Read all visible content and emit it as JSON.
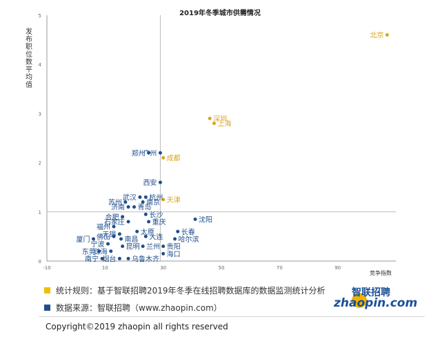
{
  "chart_data": {
    "type": "scatter",
    "title": "2019年冬季城市供需情况",
    "xlabel": "竞争指数",
    "ylabel": "发布职位数平均值",
    "xlim": [
      -10,
      110
    ],
    "ylim": [
      0,
      5
    ],
    "xticks": [
      "-10",
      "10",
      "30",
      "50",
      "70",
      "90"
    ],
    "yticks": [
      "0",
      "1",
      "2",
      "3",
      "4",
      "5"
    ],
    "reference_lines": {
      "x": 29,
      "y": 1
    },
    "grid": false,
    "colors": {
      "highlight": "#d9a520",
      "normal": "#1f4e8c",
      "axis": "#999999",
      "ref": "#bbbbbb"
    },
    "points": [
      {
        "city": "北京",
        "x": 107,
        "y": 4.6,
        "group": "highlight"
      },
      {
        "city": "深圳",
        "x": 46,
        "y": 2.9,
        "group": "highlight"
      },
      {
        "city": "上海",
        "x": 47.5,
        "y": 2.8,
        "group": "highlight"
      },
      {
        "city": "成都",
        "x": 30,
        "y": 2.1,
        "group": "highlight"
      },
      {
        "city": "天津",
        "x": 30,
        "y": 1.25,
        "group": "highlight"
      },
      {
        "city": "广州",
        "x": 29,
        "y": 2.2,
        "group": "normal"
      },
      {
        "city": "郑州",
        "x": 25,
        "y": 2.2,
        "group": "normal"
      },
      {
        "city": "西安",
        "x": 29,
        "y": 1.6,
        "group": "normal"
      },
      {
        "city": "武汉",
        "x": 22,
        "y": 1.3,
        "group": "normal"
      },
      {
        "city": "杭州",
        "x": 24,
        "y": 1.3,
        "group": "normal"
      },
      {
        "city": "苏州",
        "x": 17,
        "y": 1.2,
        "group": "normal"
      },
      {
        "city": "南京",
        "x": 23,
        "y": 1.2,
        "group": "normal"
      },
      {
        "city": "济南",
        "x": 18,
        "y": 1.1,
        "group": "normal"
      },
      {
        "city": "青岛",
        "x": 20,
        "y": 1.1,
        "group": "normal"
      },
      {
        "city": "合肥",
        "x": 16,
        "y": 0.9,
        "group": "normal"
      },
      {
        "city": "长沙",
        "x": 24,
        "y": 0.95,
        "group": "normal"
      },
      {
        "city": "石家庄",
        "x": 18,
        "y": 0.8,
        "group": "normal"
      },
      {
        "city": "重庆",
        "x": 25,
        "y": 0.8,
        "group": "normal"
      },
      {
        "city": "沈阳",
        "x": 41,
        "y": 0.85,
        "group": "normal"
      },
      {
        "city": "福州",
        "x": 13,
        "y": 0.7,
        "group": "normal"
      },
      {
        "city": "太原",
        "x": 21,
        "y": 0.6,
        "group": "normal"
      },
      {
        "city": "长春",
        "x": 35,
        "y": 0.6,
        "group": "normal"
      },
      {
        "city": "无锡",
        "x": 15,
        "y": 0.55,
        "group": "normal"
      },
      {
        "city": "大连",
        "x": 24,
        "y": 0.5,
        "group": "normal"
      },
      {
        "city": "厦门",
        "x": 6,
        "y": 0.45,
        "group": "normal"
      },
      {
        "city": "佛山",
        "x": 13,
        "y": 0.5,
        "group": "normal"
      },
      {
        "city": "南昌",
        "x": 15.5,
        "y": 0.45,
        "group": "normal"
      },
      {
        "city": "哈尔滨",
        "x": 34,
        "y": 0.45,
        "group": "normal"
      },
      {
        "city": "宁波",
        "x": 11,
        "y": 0.35,
        "group": "normal"
      },
      {
        "city": "昆明",
        "x": 16,
        "y": 0.3,
        "group": "normal"
      },
      {
        "city": "兰州",
        "x": 23,
        "y": 0.3,
        "group": "normal"
      },
      {
        "city": "贵阳",
        "x": 30,
        "y": 0.3,
        "group": "normal"
      },
      {
        "city": "东莞",
        "x": 8,
        "y": 0.2,
        "group": "normal"
      },
      {
        "city": "珠海",
        "x": 12,
        "y": 0.2,
        "group": "normal"
      },
      {
        "city": "海口",
        "x": 30,
        "y": 0.15,
        "group": "normal"
      },
      {
        "city": "南宁",
        "x": 9,
        "y": 0.05,
        "group": "normal"
      },
      {
        "city": "烟台",
        "x": 15,
        "y": 0.05,
        "group": "normal"
      },
      {
        "city": "乌鲁木齐",
        "x": 18,
        "y": 0.05,
        "group": "normal"
      }
    ]
  },
  "legend": {
    "rule_text": "统计规则：基于智联招聘2019年冬季在线招聘数据库的数据监测统计分析",
    "rule_color": "#f0c000",
    "source_text": "数据来源：智联招聘（www.zhaopin.com）",
    "source_color": "#1f4e8c"
  },
  "logo": {
    "cn": "智联招聘",
    "en": "zhaopin.com"
  },
  "copyright": "Copyright©2019 zhaopin all rights reserved"
}
